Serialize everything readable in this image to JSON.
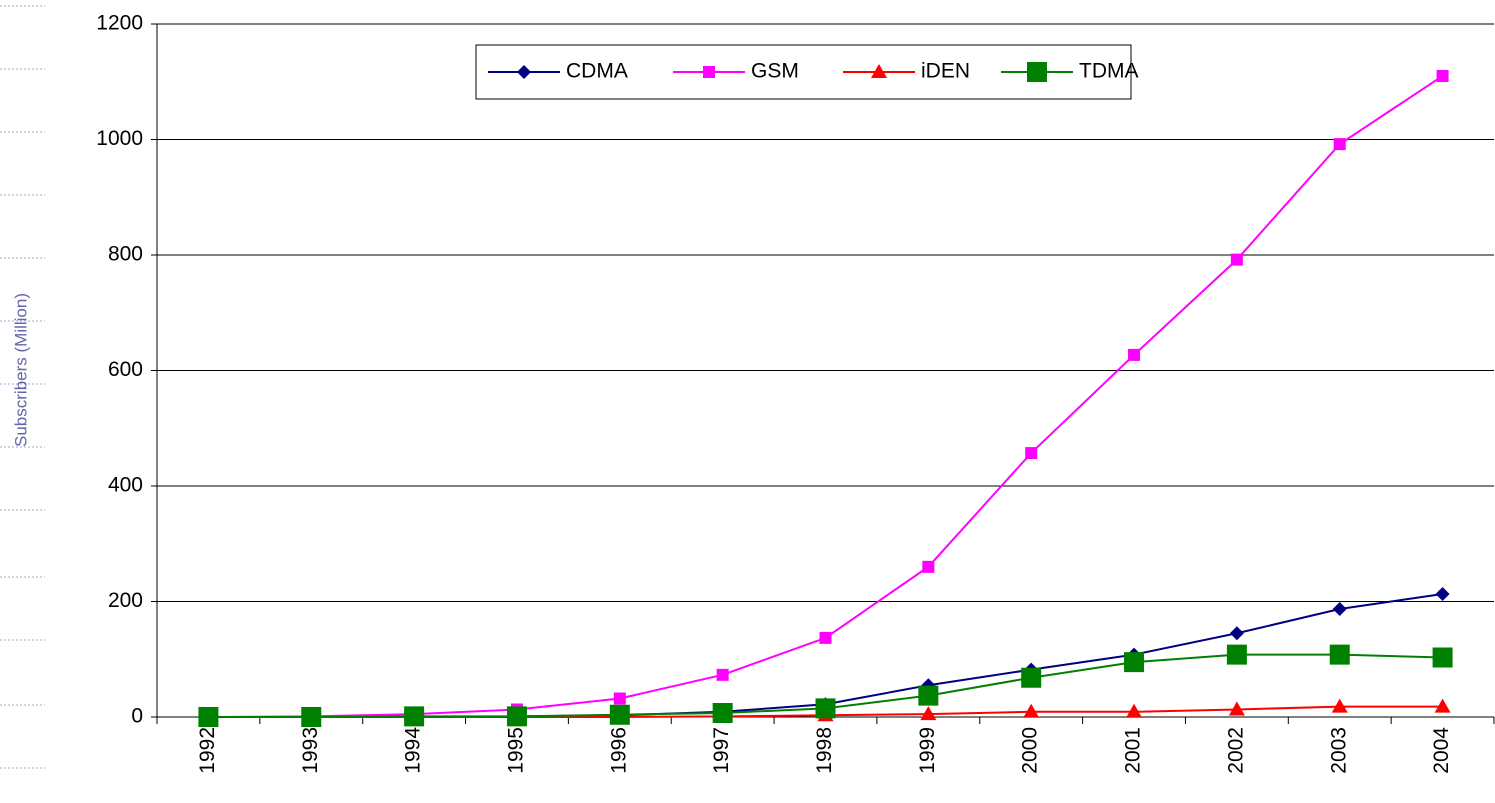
{
  "chart_data": {
    "type": "line",
    "y_label": "Subscribers (Million)",
    "categories": [
      "1992",
      "1993",
      "1994",
      "1995",
      "1996",
      "1997",
      "1998",
      "1999",
      "2000",
      "2001",
      "2002",
      "2003",
      "2004"
    ],
    "series": [
      {
        "name": "CDMA",
        "color": "#000080",
        "marker": "diamond",
        "values": [
          0,
          0,
          0,
          1,
          3,
          9,
          22,
          55,
          82,
          108,
          145,
          187,
          213
        ]
      },
      {
        "name": "GSM",
        "color": "#ff00ff",
        "marker": "square",
        "values": [
          0,
          1,
          5,
          13,
          32,
          73,
          137,
          260,
          457,
          627,
          792,
          992,
          1110
        ]
      },
      {
        "name": "iDEN",
        "color": "#ff0000",
        "marker": "triangle",
        "values": [
          0,
          0,
          0,
          0,
          0,
          1,
          3,
          5,
          9,
          9,
          13,
          18,
          18
        ]
      },
      {
        "name": "TDMA",
        "color": "#008000",
        "marker": "bigsquare",
        "values": [
          0,
          0,
          1,
          1,
          4,
          7,
          15,
          37,
          68,
          95,
          108,
          108,
          103
        ]
      }
    ],
    "ylim": [
      0,
      1200
    ],
    "yticks": [
      0,
      200,
      400,
      600,
      800,
      1000,
      1200
    ],
    "grid": true,
    "legend": "top"
  }
}
